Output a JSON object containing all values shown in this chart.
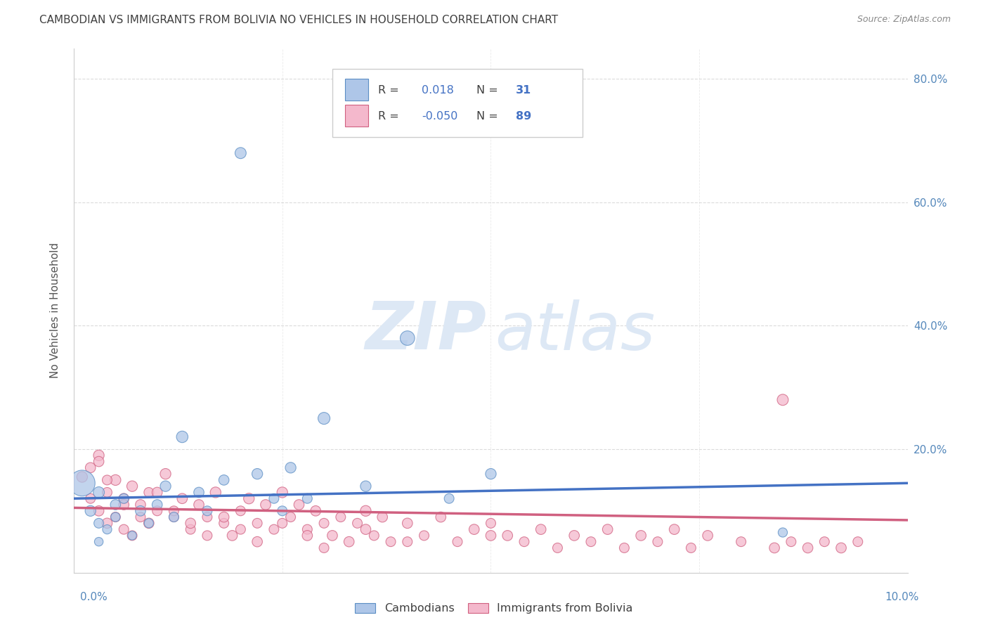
{
  "title": "CAMBODIAN VS IMMIGRANTS FROM BOLIVIA NO VEHICLES IN HOUSEHOLD CORRELATION CHART",
  "source": "Source: ZipAtlas.com",
  "ylabel": "No Vehicles in Household",
  "xlim": [
    0.0,
    0.1
  ],
  "ylim": [
    0.0,
    0.85
  ],
  "blue_color": "#aec6e8",
  "blue_edge_color": "#5b8ec4",
  "blue_line_color": "#4472c4",
  "pink_color": "#f4b8cc",
  "pink_edge_color": "#d06080",
  "pink_line_color": "#d06080",
  "axis_label_color": "#5588bb",
  "title_color": "#404040",
  "watermark_color": "#dde8f5",
  "grid_color": "#cccccc",
  "legend_text_color": "#404040",
  "legend_value_color": "#4472c4",
  "legend_labels": [
    "Cambodians",
    "Immigrants from Bolivia"
  ],
  "cambodian_R": "0.018",
  "cambodian_N": "31",
  "bolivia_R": "-0.050",
  "bolivia_N": "89",
  "ytick_positions": [
    0.0,
    0.2,
    0.4,
    0.6,
    0.8
  ],
  "ytick_labels": [
    "",
    "20.0%",
    "40.0%",
    "60.0%",
    "80.0%"
  ],
  "cam_x": [
    0.001,
    0.002,
    0.003,
    0.003,
    0.004,
    0.005,
    0.005,
    0.006,
    0.007,
    0.008,
    0.009,
    0.01,
    0.011,
    0.012,
    0.013,
    0.015,
    0.016,
    0.018,
    0.02,
    0.022,
    0.024,
    0.026,
    0.028,
    0.03,
    0.035,
    0.04,
    0.045,
    0.05,
    0.085,
    0.025,
    0.003
  ],
  "cam_y": [
    0.145,
    0.1,
    0.08,
    0.13,
    0.07,
    0.11,
    0.09,
    0.12,
    0.06,
    0.1,
    0.08,
    0.11,
    0.14,
    0.09,
    0.22,
    0.13,
    0.1,
    0.15,
    0.68,
    0.16,
    0.12,
    0.17,
    0.12,
    0.25,
    0.14,
    0.38,
    0.12,
    0.16,
    0.065,
    0.1,
    0.05
  ],
  "cam_sz": [
    700,
    120,
    100,
    130,
    90,
    110,
    90,
    100,
    80,
    110,
    90,
    110,
    120,
    100,
    140,
    110,
    100,
    110,
    130,
    120,
    100,
    120,
    100,
    150,
    120,
    220,
    100,
    120,
    90,
    100,
    80
  ],
  "bol_x": [
    0.001,
    0.002,
    0.002,
    0.003,
    0.003,
    0.004,
    0.004,
    0.005,
    0.005,
    0.006,
    0.006,
    0.007,
    0.007,
    0.008,
    0.009,
    0.009,
    0.01,
    0.011,
    0.012,
    0.013,
    0.014,
    0.015,
    0.016,
    0.017,
    0.018,
    0.019,
    0.02,
    0.021,
    0.022,
    0.023,
    0.024,
    0.025,
    0.026,
    0.027,
    0.028,
    0.029,
    0.03,
    0.031,
    0.032,
    0.033,
    0.034,
    0.035,
    0.036,
    0.037,
    0.038,
    0.04,
    0.042,
    0.044,
    0.046,
    0.048,
    0.05,
    0.052,
    0.054,
    0.056,
    0.058,
    0.06,
    0.062,
    0.064,
    0.066,
    0.068,
    0.07,
    0.072,
    0.074,
    0.076,
    0.08,
    0.084,
    0.086,
    0.088,
    0.09,
    0.092,
    0.094,
    0.003,
    0.004,
    0.006,
    0.008,
    0.01,
    0.012,
    0.014,
    0.016,
    0.018,
    0.02,
    0.022,
    0.025,
    0.028,
    0.03,
    0.035,
    0.04,
    0.05,
    0.085
  ],
  "bol_y": [
    0.155,
    0.17,
    0.12,
    0.1,
    0.19,
    0.13,
    0.08,
    0.15,
    0.09,
    0.12,
    0.07,
    0.14,
    0.06,
    0.11,
    0.13,
    0.08,
    0.1,
    0.16,
    0.09,
    0.12,
    0.07,
    0.11,
    0.09,
    0.13,
    0.08,
    0.06,
    0.1,
    0.12,
    0.08,
    0.11,
    0.07,
    0.13,
    0.09,
    0.11,
    0.07,
    0.1,
    0.08,
    0.06,
    0.09,
    0.05,
    0.08,
    0.1,
    0.06,
    0.09,
    0.05,
    0.08,
    0.06,
    0.09,
    0.05,
    0.07,
    0.08,
    0.06,
    0.05,
    0.07,
    0.04,
    0.06,
    0.05,
    0.07,
    0.04,
    0.06,
    0.05,
    0.07,
    0.04,
    0.06,
    0.05,
    0.04,
    0.05,
    0.04,
    0.05,
    0.04,
    0.05,
    0.18,
    0.15,
    0.11,
    0.09,
    0.13,
    0.1,
    0.08,
    0.06,
    0.09,
    0.07,
    0.05,
    0.08,
    0.06,
    0.04,
    0.07,
    0.05,
    0.06,
    0.28
  ],
  "bol_sz": [
    120,
    110,
    100,
    110,
    120,
    100,
    110,
    120,
    100,
    110,
    100,
    120,
    100,
    110,
    100,
    110,
    100,
    120,
    100,
    110,
    100,
    110,
    100,
    120,
    100,
    110,
    100,
    120,
    100,
    110,
    100,
    120,
    100,
    110,
    100,
    110,
    100,
    110,
    100,
    110,
    100,
    120,
    100,
    110,
    100,
    110,
    100,
    110,
    100,
    110,
    100,
    110,
    100,
    110,
    100,
    110,
    100,
    110,
    100,
    110,
    100,
    110,
    100,
    110,
    100,
    110,
    100,
    110,
    100,
    110,
    100,
    110,
    100,
    110,
    100,
    110,
    100,
    110,
    100,
    110,
    100,
    110,
    100,
    110,
    100,
    110,
    100,
    110,
    130
  ]
}
